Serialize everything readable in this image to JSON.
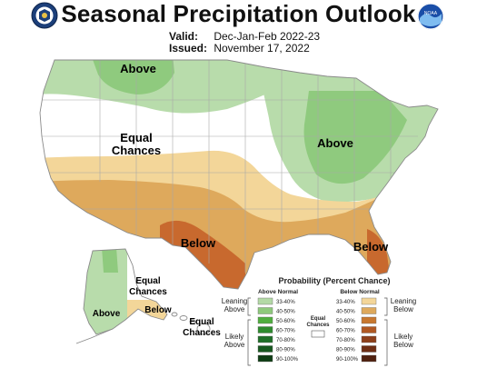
{
  "header": {
    "title": "Seasonal Precipitation Outlook",
    "valid_label": "Valid:",
    "valid_value": "Dec-Jan-Feb 2022-23",
    "issued_label": "Issued:",
    "issued_value": "November 17, 2022"
  },
  "logos": {
    "left_icon": "doc-seal-icon",
    "right_icon": "noaa-logo-icon",
    "right_text": "NOAA"
  },
  "map_labels": {
    "above_north": "Above",
    "above_east": "Above",
    "equal_chances_west": [
      "Equal",
      "Chances"
    ],
    "below_texas": "Below",
    "below_florida": "Below",
    "alaska_above": "Above",
    "alaska_equal": [
      "Equal",
      "Chances"
    ],
    "alaska_below": "Below",
    "hawaii_equal": [
      "Equal",
      "Chances"
    ]
  },
  "legend": {
    "title": "Probability (Percent Chance)",
    "above_header": "Above Normal",
    "below_header": "Below Normal",
    "equal_chances": [
      "Equal",
      "Chances"
    ],
    "leaning_above": [
      "Leaning",
      "Above"
    ],
    "likely_above": [
      "Likely",
      "Above"
    ],
    "leaning_below": [
      "Leaning",
      "Below"
    ],
    "likely_below": [
      "Likely",
      "Below"
    ],
    "bins": [
      "33-40%",
      "40-50%",
      "50-60%",
      "60-70%",
      "70-80%",
      "80-90%",
      "90-100%"
    ],
    "above_colors": [
      "#b3d9a6",
      "#8ec97c",
      "#4fae3e",
      "#2e8b2e",
      "#1f6f28",
      "#17581f",
      "#0e3d14"
    ],
    "below_colors": [
      "#f3d699",
      "#dea95c",
      "#c8782f",
      "#b05822",
      "#8d3f1a",
      "#6e2e14",
      "#4f200e"
    ]
  },
  "colors": {
    "above_33_40": "#b8dcab",
    "above_40_50": "#8fca7e",
    "below_33_40": "#f3d699",
    "below_40_50": "#dea95c",
    "below_50_60": "#c8692e",
    "equal": "#ffffff",
    "border": "#8a8a8a"
  }
}
